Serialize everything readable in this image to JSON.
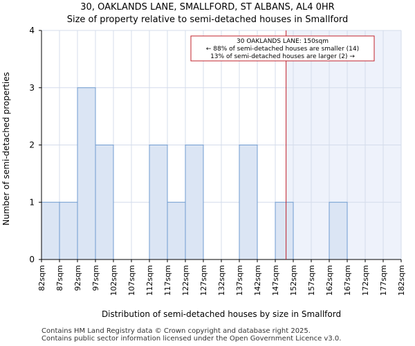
{
  "title_line1": "30, OAKLANDS LANE, SMALLFORD, ST ALBANS, AL4 0HR",
  "title_line2": "Size of property relative to semi-detached houses in Smallford",
  "chart_data": {
    "type": "bar",
    "title": "Size of property relative to semi-detached houses in Smallford",
    "xlabel": "Distribution of semi-detached houses by size in Smallford",
    "ylabel": "Number of semi-detached properties",
    "ylim": [
      0,
      4
    ],
    "yticks": [
      0,
      1,
      2,
      3,
      4
    ],
    "x_range": [
      82,
      182
    ],
    "bin_width": 5,
    "tick_labels": [
      "82sqm",
      "87sqm",
      "92sqm",
      "97sqm",
      "102sqm",
      "107sqm",
      "112sqm",
      "117sqm",
      "122sqm",
      "127sqm",
      "132sqm",
      "137sqm",
      "142sqm",
      "147sqm",
      "152sqm",
      "157sqm",
      "162sqm",
      "167sqm",
      "172sqm",
      "177sqm",
      "182sqm"
    ],
    "bin_starts": [
      82,
      87,
      92,
      97,
      102,
      107,
      112,
      117,
      122,
      127,
      132,
      137,
      142,
      147,
      152,
      157,
      162,
      167,
      172,
      177
    ],
    "values": [
      1,
      1,
      3,
      2,
      0,
      0,
      2,
      1,
      2,
      0,
      0,
      2,
      0,
      1,
      0,
      0,
      1,
      0,
      0,
      0
    ],
    "property_size": 150,
    "shade_from": 150,
    "annotation": {
      "line1": "30 OAKLANDS LANE: 150sqm",
      "line2": "← 88% of semi-detached houses are smaller (14)",
      "line3": "13% of semi-detached houses are larger (2) →"
    },
    "colors": {
      "bar_fill": "#dbe5f4",
      "bar_stroke": "#6f9bd0",
      "marker_line": "#c0202b",
      "shade": "#eef2fb",
      "grid": "#d4dceb",
      "axes": "#000000"
    }
  },
  "footer_line1": "Contains HM Land Registry data © Crown copyright and database right 2025.",
  "footer_line2": "Contains public sector information licensed under the Open Government Licence v3.0."
}
